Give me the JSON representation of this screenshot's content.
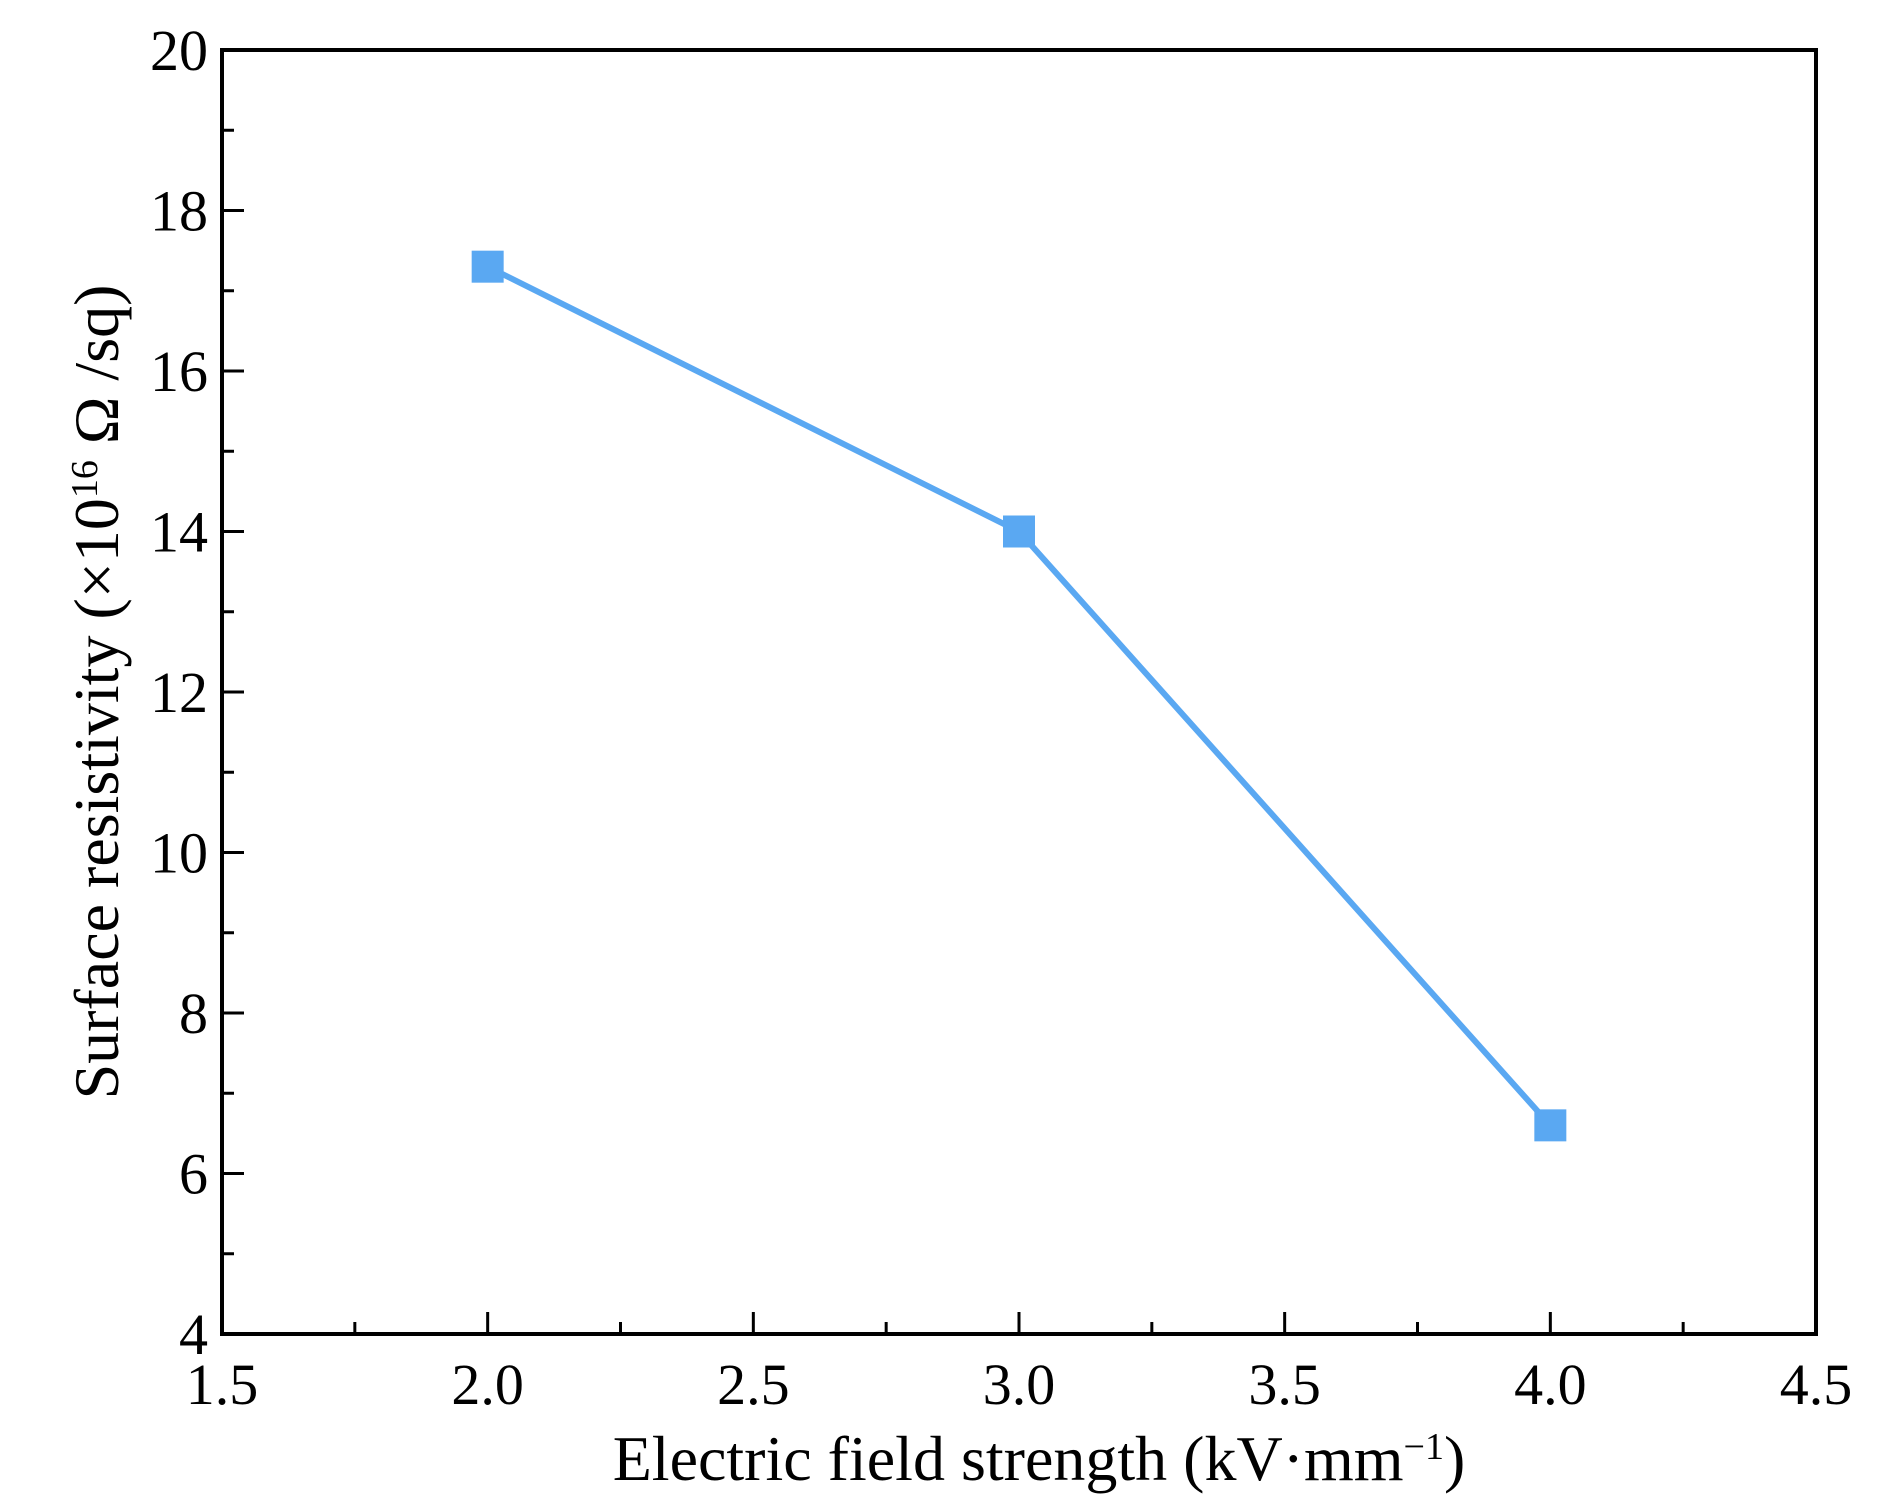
{
  "chart_data": {
    "type": "line",
    "title": "",
    "xlabel": {
      "text": "Electric field strength (kV·mm",
      "sup": "−1",
      "close": ")"
    },
    "ylabel": {
      "text": "Surface resistivity (×10",
      "sup": "16",
      "rest": " Ω /sq)"
    },
    "xlim": [
      1.5,
      4.5
    ],
    "ylim": [
      4,
      20
    ],
    "x_ticks": [
      1.5,
      2.0,
      2.5,
      3.0,
      3.5,
      4.0,
      4.5
    ],
    "x_tick_labels": [
      "1.5",
      "2.0",
      "2.5",
      "3.0",
      "3.5",
      "4.0",
      "4.5"
    ],
    "x_minor_ticks": [
      1.75,
      2.25,
      2.75,
      3.25,
      3.75,
      4.25
    ],
    "y_ticks": [
      4,
      6,
      8,
      10,
      12,
      14,
      16,
      18,
      20
    ],
    "y_tick_labels": [
      "4",
      "6",
      "8",
      "10",
      "12",
      "14",
      "16",
      "18",
      "20"
    ],
    "y_minor_ticks": [
      5,
      7,
      9,
      11,
      13,
      15,
      17,
      19
    ],
    "grid": false,
    "series": [
      {
        "name": "Surface resistivity",
        "color": "#5aa8f2",
        "marker": "square",
        "x": [
          2.0,
          3.0,
          4.0
        ],
        "y": [
          17.3,
          14.0,
          6.6
        ]
      }
    ]
  }
}
